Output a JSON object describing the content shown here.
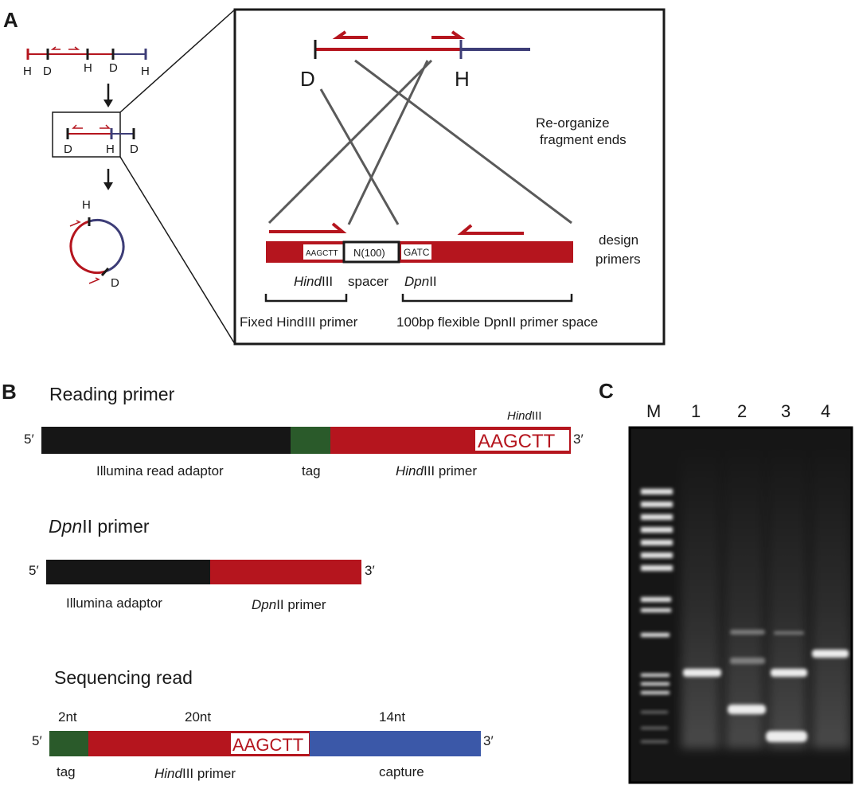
{
  "figure": {
    "panel_labels": {
      "a": "A",
      "b": "B",
      "c": "C"
    },
    "panel_a": {
      "left_sites": [
        "H",
        "D",
        "H",
        "D",
        "H"
      ],
      "mid_sites": [
        "D",
        "H",
        "D"
      ],
      "circle_sites": {
        "top": "H",
        "bottom": "D"
      },
      "zoom_sites": {
        "left": "D",
        "right": "H"
      },
      "reorganize": [
        "Re-organize",
        "fragment ends"
      ],
      "design": [
        "design",
        "primers"
      ],
      "box_hind": "AAGCTT",
      "box_spacer": "N(100)",
      "box_dpn": "GATC",
      "hind_italic": "Hind",
      "hind_roman": "III",
      "spacer_label": "spacer",
      "dpn_italic": "Dpn",
      "dpn_roman": "II",
      "fixed_label": "Fixed HindIII primer",
      "flex_label": "100bp flexible DpnII primer space"
    },
    "panel_b": {
      "five": "5′",
      "three": "3′",
      "reading_title": "Reading primer",
      "reading_hind_top_italic": "Hind",
      "reading_hind_top_roman": "III",
      "reading_site": "AAGCTT",
      "reading_labels": {
        "adaptor": "Illumina read adaptor",
        "tag": "tag",
        "primer_italic": "Hind",
        "primer_roman": "III primer"
      },
      "dpn_title_italic": "Dpn",
      "dpn_title_roman": "II primer",
      "dpn_labels": {
        "adaptor": "Illumina adaptor",
        "primer_italic": "Dpn",
        "primer_roman": "II primer"
      },
      "seq_title": "Sequencing read",
      "seq_lengths": {
        "tag": "2nt",
        "primer": "20nt",
        "capture": "14nt"
      },
      "seq_site": "AAGCTT",
      "seq_labels": {
        "tag": "tag",
        "primer_italic": "Hind",
        "primer_roman": "III primer",
        "capture": "capture"
      }
    },
    "panel_c": {
      "lanes": [
        "M",
        "1",
        "2",
        "3",
        "4"
      ]
    }
  }
}
